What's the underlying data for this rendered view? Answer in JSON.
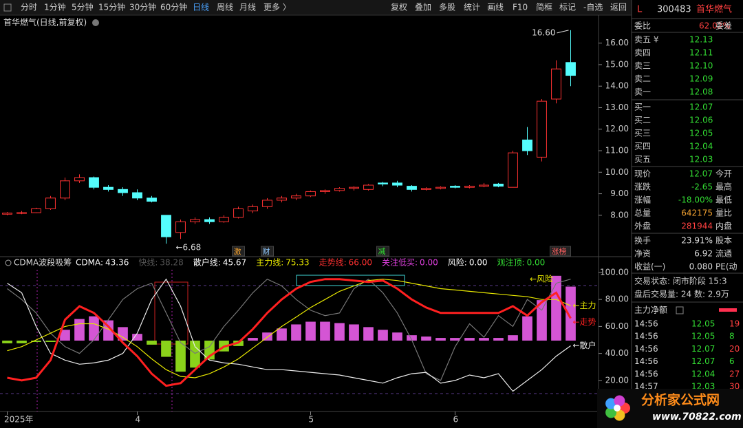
{
  "toolbar": {
    "left": [
      "分时",
      "1分钟",
      "5分钟",
      "15分钟",
      "30分钟",
      "60分钟",
      "日线",
      "周线",
      "月线",
      "更多 〉"
    ],
    "active": "日线",
    "right": [
      "复权",
      "叠加",
      "多股",
      "统计",
      "画线",
      "F10",
      "简框",
      "标记",
      "-自选",
      "返回"
    ]
  },
  "price_chart": {
    "type": "candlestick",
    "title": "首华燃气(日线,前复权)",
    "up_color": "#ff3232",
    "down_color": "#54fcfc",
    "open": [
      8.05,
      8.1,
      8.12,
      8.3,
      8.8,
      9.6,
      9.75,
      9.3,
      9.2,
      9.05,
      8.8,
      8.0,
      7.2,
      7.7,
      7.8,
      7.7,
      7.9,
      8.2,
      8.4,
      8.7,
      8.8,
      8.9,
      9.1,
      9.15,
      9.25,
      9.2,
      9.5,
      9.5,
      9.35,
      9.2,
      9.25,
      9.35,
      9.3,
      9.35,
      9.45,
      9.3,
      11.5,
      10.7,
      13.4,
      15.1
    ],
    "close": [
      8.1,
      8.12,
      8.3,
      8.8,
      9.6,
      9.75,
      9.3,
      9.2,
      9.05,
      8.8,
      8.65,
      7.0,
      7.7,
      7.8,
      7.7,
      7.9,
      8.3,
      8.4,
      8.7,
      8.8,
      8.9,
      9.1,
      9.15,
      9.25,
      9.3,
      9.4,
      9.45,
      9.4,
      9.2,
      9.25,
      9.3,
      9.3,
      9.35,
      9.4,
      9.35,
      10.9,
      11.0,
      13.3,
      14.8,
      14.5
    ],
    "high": [
      8.15,
      8.2,
      8.35,
      8.9,
      9.75,
      9.9,
      9.8,
      9.4,
      9.3,
      9.2,
      8.9,
      8.0,
      7.8,
      7.9,
      7.9,
      8.0,
      8.4,
      8.5,
      8.8,
      8.9,
      9.0,
      9.15,
      9.2,
      9.3,
      9.35,
      9.45,
      9.55,
      9.6,
      9.4,
      9.3,
      9.35,
      9.4,
      9.4,
      9.5,
      9.5,
      11.0,
      12.1,
      13.4,
      15.2,
      16.6
    ],
    "low": [
      8.0,
      8.05,
      8.1,
      8.25,
      8.7,
      9.5,
      9.2,
      9.1,
      8.9,
      8.7,
      8.6,
      6.68,
      6.9,
      7.6,
      7.6,
      7.65,
      7.85,
      8.1,
      8.3,
      8.6,
      8.7,
      8.85,
      9.0,
      9.1,
      9.15,
      9.15,
      9.35,
      9.3,
      9.1,
      9.15,
      9.2,
      9.25,
      9.25,
      9.3,
      9.3,
      9.3,
      10.8,
      10.5,
      13.2,
      14.0
    ],
    "categories": [
      "2025年",
      null,
      null,
      null,
      null,
      null,
      null,
      null,
      null,
      "4",
      null,
      null,
      null,
      null,
      null,
      null,
      null,
      null,
      null,
      null,
      null,
      "5",
      null,
      null,
      null,
      null,
      null,
      null,
      null,
      null,
      null,
      "6",
      null,
      null,
      null,
      null,
      null,
      null,
      null,
      null
    ],
    "events": [
      null,
      null,
      null,
      null,
      null,
      null,
      null,
      null,
      null,
      null,
      null,
      null,
      null,
      null,
      null,
      null,
      "激",
      null,
      "财",
      null,
      null,
      null,
      null,
      null,
      null,
      null,
      "减",
      null,
      null,
      null,
      null,
      null,
      null,
      null,
      null,
      null,
      null,
      null,
      "涨榜",
      null
    ],
    "annotations": {
      "high": "16.60",
      "low": "←6.68"
    },
    "ylim": [
      6.3,
      17.3
    ],
    "yticks": [
      {
        "value": 8,
        "label": "8.00"
      },
      {
        "value": 9,
        "label": "9.00"
      },
      {
        "value": 10,
        "label": "10.00"
      },
      {
        "value": 11,
        "label": "11.00"
      },
      {
        "value": 12,
        "label": "12.00"
      },
      {
        "value": 13,
        "label": "13.00"
      },
      {
        "value": 14,
        "label": "14.00"
      },
      {
        "value": 15,
        "label": "15.00"
      },
      {
        "value": 16,
        "label": "16.00"
      }
    ]
  },
  "indicator_chart": {
    "type": "line",
    "title": "CDMA波段吸筹",
    "legend": [
      {
        "name": "CDMA:",
        "value": "43.36",
        "color": "#ffffff"
      },
      {
        "name": "快线:",
        "value": "38.28",
        "color": "#555555"
      },
      {
        "name": "散户线:",
        "value": "45.67",
        "color": "#ffffff"
      },
      {
        "name": "主力线:",
        "value": "75.33",
        "color": "#e8e800"
      },
      {
        "name": "走势线:",
        "value": "66.00",
        "color": "#ff3030"
      },
      {
        "name": "关注低买:",
        "value": "0.00",
        "color": "#e040e0"
      },
      {
        "name": "风险:",
        "value": "0.00",
        "color": "#ffffff"
      },
      {
        "name": "观注顶:",
        "value": "0.00",
        "color": "#33dd33"
      }
    ],
    "histogram": {
      "pos_color": "#d455d4",
      "neg_color": "#8ad21a",
      "values": [
        -2,
        -2,
        -1,
        -1,
        8,
        16,
        18,
        15,
        10,
        5,
        -3,
        -12,
        -23,
        -20,
        -14,
        -8,
        -4,
        2,
        6,
        9,
        12,
        14,
        14,
        13,
        12,
        10,
        8,
        6,
        4,
        3,
        2,
        2,
        2,
        2,
        2,
        4,
        18,
        30,
        48,
        40
      ]
    },
    "series": [
      {
        "color": "#777777",
        "width": 1.2,
        "values": [
          88,
          80,
          70,
          55,
          45,
          40,
          50,
          65,
          80,
          88,
          92,
          70,
          48,
          40,
          45,
          60,
          72,
          85,
          95,
          90,
          80,
          72,
          68,
          70,
          88,
          95,
          85,
          70,
          50,
          25,
          20,
          45,
          62,
          52,
          68,
          60,
          80,
          72,
          92,
          95
        ]
      },
      {
        "color": "#eeeeee",
        "width": 1.2,
        "label": "←散户",
        "values": [
          92,
          85,
          60,
          40,
          35,
          32,
          33,
          35,
          40,
          55,
          80,
          95,
          75,
          45,
          35,
          33,
          32,
          30,
          28,
          28,
          27,
          26,
          25,
          24,
          22,
          20,
          18,
          22,
          25,
          26,
          18,
          20,
          24,
          22,
          25,
          12,
          20,
          28,
          38,
          45.67
        ]
      },
      {
        "color": "#e8e800",
        "width": 1.2,
        "label": "←主力",
        "values": [
          42,
          45,
          50,
          55,
          60,
          62,
          62,
          58,
          52,
          45,
          36,
          28,
          23,
          22,
          25,
          30,
          36,
          44,
          52,
          60,
          67,
          74,
          80,
          86,
          90,
          94,
          95,
          94,
          92,
          90,
          88,
          87,
          86,
          85,
          84,
          83,
          82,
          80,
          80,
          75.33
        ]
      },
      {
        "color": "#ff2020",
        "width": 3,
        "label": "←走势",
        "values": [
          22,
          20,
          22,
          35,
          65,
          75,
          70,
          60,
          48,
          38,
          25,
          16,
          18,
          28,
          38,
          45,
          48,
          58,
          70,
          80,
          88,
          93,
          95,
          95,
          94,
          93,
          94,
          88,
          80,
          74,
          70,
          70,
          70,
          70,
          70,
          75,
          68,
          78,
          85,
          66
        ]
      }
    ],
    "risk_label": "←风险",
    "ylim": [
      -3,
      102
    ],
    "yticks": [
      {
        "value": 20,
        "label": "20.00"
      },
      {
        "value": 40,
        "label": "40.00"
      },
      {
        "value": 60,
        "label": "60.00"
      },
      {
        "value": 80,
        "label": "80.00"
      },
      {
        "value": 100,
        "label": "100.00"
      }
    ]
  },
  "side_panel": {
    "market_flag": "L",
    "code": "300483",
    "name": "首华燃气",
    "weibi": {
      "label": "委比",
      "value": "62.02%",
      "label2": "委差"
    },
    "asks": [
      [
        "卖五 ¥",
        "12.13"
      ],
      [
        "卖四",
        "12.11"
      ],
      [
        "卖三",
        "12.10"
      ],
      [
        "卖二",
        "12.09"
      ],
      [
        "卖一",
        "12.08"
      ]
    ],
    "bids": [
      [
        "买一",
        "12.07"
      ],
      [
        "买二",
        "12.06"
      ],
      [
        "买三",
        "12.05"
      ],
      [
        "买四",
        "12.04"
      ],
      [
        "买五",
        "12.03"
      ]
    ],
    "quote": [
      [
        "现价",
        "12.07",
        "今开"
      ],
      [
        "涨跌",
        "-2.65",
        "最高"
      ],
      [
        "涨幅",
        "-18.00%",
        "最低"
      ],
      [
        "总量",
        "642175",
        "量比"
      ],
      [
        "外盘",
        "281944",
        "内盘"
      ],
      [
        "换手",
        "23.91%",
        "股本"
      ],
      [
        "净资",
        "6.92",
        "流通"
      ],
      [
        "收益(一)",
        "0.080",
        "PE(动"
      ]
    ],
    "status": [
      "交易状态: 闭市阶段 15:3",
      "盘后交易量: 24 数: 2.9万"
    ],
    "flow_title": "主力净额",
    "ticks": [
      [
        "14:56",
        "12.05",
        "19"
      ],
      [
        "14:56",
        "12.05",
        "8"
      ],
      [
        "14:56",
        "12.07",
        "20"
      ],
      [
        "14:56",
        "12.07",
        "6"
      ],
      [
        "14:56",
        "12.04",
        "27"
      ],
      [
        "14:57",
        "12.03",
        "30"
      ]
    ],
    "logo": {
      "title": "分析家公式网",
      "url": "www.70822.com"
    }
  }
}
